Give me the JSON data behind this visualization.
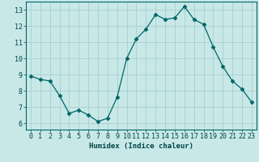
{
  "x": [
    0,
    1,
    2,
    3,
    4,
    5,
    6,
    7,
    8,
    9,
    10,
    11,
    12,
    13,
    14,
    15,
    16,
    17,
    18,
    19,
    20,
    21,
    22,
    23
  ],
  "y": [
    8.9,
    8.7,
    8.6,
    7.7,
    6.6,
    6.8,
    6.5,
    6.1,
    6.3,
    7.6,
    10.0,
    11.2,
    11.8,
    12.7,
    12.4,
    12.5,
    13.2,
    12.4,
    12.1,
    10.7,
    9.5,
    8.6,
    8.1,
    7.3
  ],
  "line_color": "#006666",
  "marker": "D",
  "marker_size": 2.5,
  "bg_color": "#c8e8e8",
  "grid_color": "#a8cece",
  "xlabel": "Humidex (Indice chaleur)",
  "xlim": [
    -0.5,
    23.5
  ],
  "ylim": [
    5.6,
    13.5
  ],
  "xticks": [
    0,
    1,
    2,
    3,
    4,
    5,
    6,
    7,
    8,
    9,
    10,
    11,
    12,
    13,
    14,
    15,
    16,
    17,
    18,
    19,
    20,
    21,
    22,
    23
  ],
  "yticks": [
    6,
    7,
    8,
    9,
    10,
    11,
    12,
    13
  ],
  "xlabel_fontsize": 6.5,
  "tick_fontsize": 6.0
}
